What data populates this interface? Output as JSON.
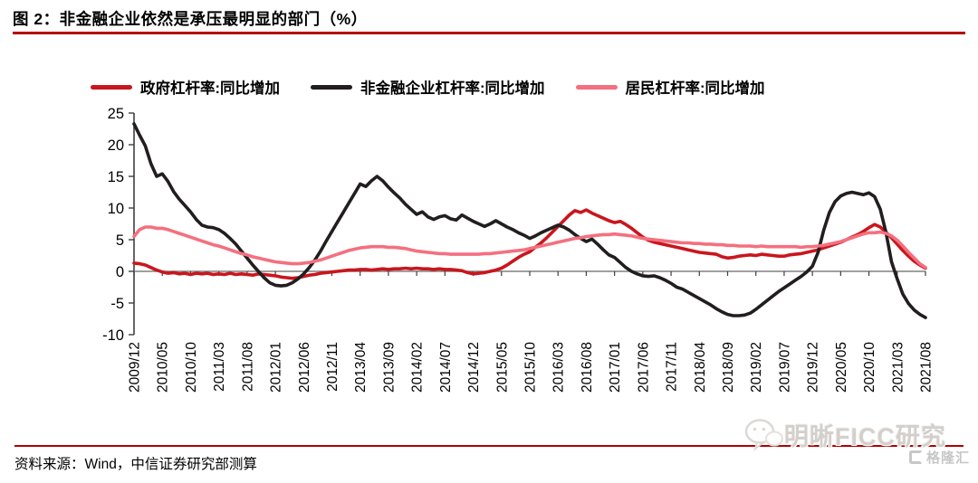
{
  "title": "图 2：非金融企业依然是承压最明显的部门（%）",
  "source": "资料来源：Wind，中信证券研究部测算",
  "watermark": {
    "text": "明晰FICC研究",
    "logo_text": "格隆汇"
  },
  "colors": {
    "government": "#c9161d",
    "corporate": "#221e1f",
    "household": "#f4707f",
    "rule_red": "#b20000",
    "axis_gray": "#808080",
    "axis_dark": "#3f3f3f"
  },
  "chart_data": {
    "type": "line",
    "title": "图 2：非金融企业依然是承压最明显的部门（%）",
    "ylim": [
      -10,
      25
    ],
    "yticks": [
      25,
      20,
      15,
      10,
      5,
      0,
      -5,
      -10
    ],
    "grid": false,
    "legend_position": "top",
    "x_monthly_start": "2009/12",
    "x_monthly_end": "2021/08",
    "x_tick_every_months": 5,
    "x_tick_labels": [
      "2009/12",
      "2010/05",
      "2010/10",
      "2011/03",
      "2011/08",
      "2012/01",
      "2012/06",
      "2012/11",
      "2013/04",
      "2013/09",
      "2014/02",
      "2014/07",
      "2014/12",
      "2015/05",
      "2015/10",
      "2016/03",
      "2016/08",
      "2017/01",
      "2017/06",
      "2017/11",
      "2018/04",
      "2018/09",
      "2019/02",
      "2019/07",
      "2019/12",
      "2020/05",
      "2020/10",
      "2021/03",
      "2021/08"
    ],
    "series": [
      {
        "name": "政府杠杆率:同比增加",
        "color": "#c9161d",
        "values": [
          1.3,
          1.2,
          1.0,
          0.6,
          0.2,
          -0.1,
          -0.3,
          -0.2,
          -0.4,
          -0.3,
          -0.5,
          -0.3,
          -0.4,
          -0.3,
          -0.5,
          -0.4,
          -0.5,
          -0.3,
          -0.5,
          -0.4,
          -0.5,
          -0.6,
          -0.4,
          -0.5,
          -0.6,
          -0.7,
          -0.9,
          -1.0,
          -1.1,
          -1.0,
          -0.8,
          -0.6,
          -0.5,
          -0.3,
          -0.2,
          -0.1,
          0.0,
          0.1,
          0.2,
          0.2,
          0.3,
          0.3,
          0.2,
          0.3,
          0.4,
          0.3,
          0.4,
          0.4,
          0.5,
          0.4,
          0.5,
          0.4,
          0.4,
          0.3,
          0.4,
          0.3,
          0.3,
          0.2,
          0.1,
          -0.2,
          -0.4,
          -0.3,
          -0.2,
          0.0,
          0.2,
          0.5,
          1.0,
          1.6,
          2.2,
          2.7,
          3.1,
          3.8,
          4.5,
          5.3,
          6.2,
          7.1,
          8.0,
          8.9,
          9.6,
          9.3,
          9.7,
          9.2,
          8.8,
          8.4,
          8.0,
          7.7,
          7.9,
          7.4,
          6.8,
          6.1,
          5.4,
          4.9,
          4.6,
          4.4,
          4.2,
          4.0,
          3.8,
          3.6,
          3.4,
          3.2,
          3.0,
          2.9,
          2.8,
          2.7,
          2.3,
          2.1,
          2.2,
          2.4,
          2.5,
          2.6,
          2.5,
          2.7,
          2.6,
          2.5,
          2.4,
          2.4,
          2.6,
          2.7,
          2.8,
          3.0,
          3.2,
          3.4,
          3.7,
          4.0,
          4.3,
          4.6,
          5.0,
          5.4,
          5.8,
          6.3,
          6.9,
          7.4,
          7.0,
          6.2,
          5.3,
          4.3,
          3.3,
          2.4,
          1.6,
          1.0,
          0.5
        ]
      },
      {
        "name": "非金融企业杠杆率:同比增加",
        "color": "#221e1f",
        "values": [
          23.3,
          21.5,
          19.8,
          17.0,
          15.0,
          15.4,
          14.2,
          12.6,
          11.4,
          10.4,
          9.4,
          8.2,
          7.3,
          7.0,
          6.9,
          6.6,
          6.0,
          5.2,
          4.3,
          3.2,
          2.1,
          1.0,
          0.0,
          -1.0,
          -1.8,
          -2.2,
          -2.3,
          -2.2,
          -1.8,
          -1.2,
          -0.4,
          0.6,
          1.8,
          3.2,
          4.8,
          6.3,
          7.8,
          9.3,
          10.8,
          12.3,
          13.8,
          13.4,
          14.3,
          15.0,
          14.3,
          13.3,
          12.4,
          11.6,
          10.6,
          9.8,
          9.0,
          9.4,
          8.6,
          8.2,
          8.6,
          8.8,
          8.3,
          8.1,
          8.9,
          8.4,
          7.9,
          7.5,
          7.1,
          7.5,
          8.0,
          7.5,
          7.0,
          6.6,
          6.1,
          5.7,
          5.2,
          5.6,
          6.1,
          6.5,
          6.9,
          7.3,
          7.0,
          6.5,
          5.8,
          5.2,
          4.7,
          5.1,
          4.3,
          3.4,
          2.6,
          2.2,
          1.4,
          0.6,
          0.0,
          -0.4,
          -0.7,
          -0.8,
          -0.7,
          -1.0,
          -1.4,
          -1.9,
          -2.5,
          -2.8,
          -3.3,
          -3.8,
          -4.3,
          -4.8,
          -5.3,
          -5.9,
          -6.4,
          -6.8,
          -7.0,
          -7.0,
          -6.9,
          -6.6,
          -6.0,
          -5.3,
          -4.6,
          -3.9,
          -3.2,
          -2.6,
          -2.0,
          -1.4,
          -0.8,
          -0.1,
          0.8,
          3.0,
          6.5,
          9.3,
          11.0,
          11.9,
          12.3,
          12.5,
          12.3,
          12.1,
          12.4,
          11.8,
          9.8,
          6.2,
          1.5,
          -1.2,
          -3.6,
          -5.1,
          -6.1,
          -6.8,
          -7.3
        ]
      },
      {
        "name": "居民杠杆率:同比增加",
        "color": "#f4707f",
        "values": [
          5.5,
          6.6,
          7.0,
          7.0,
          6.8,
          6.8,
          6.6,
          6.3,
          6.0,
          5.7,
          5.4,
          5.1,
          4.8,
          4.5,
          4.2,
          4.0,
          3.7,
          3.4,
          3.1,
          2.8,
          2.6,
          2.3,
          2.1,
          1.9,
          1.7,
          1.5,
          1.4,
          1.3,
          1.2,
          1.2,
          1.3,
          1.4,
          1.6,
          1.8,
          2.1,
          2.4,
          2.7,
          3.0,
          3.3,
          3.5,
          3.7,
          3.8,
          3.9,
          3.9,
          3.9,
          3.8,
          3.8,
          3.7,
          3.6,
          3.4,
          3.2,
          3.1,
          3.0,
          2.9,
          2.8,
          2.8,
          2.7,
          2.7,
          2.7,
          2.7,
          2.7,
          2.7,
          2.8,
          2.8,
          2.9,
          3.0,
          3.1,
          3.2,
          3.3,
          3.4,
          3.6,
          3.8,
          4.0,
          4.2,
          4.4,
          4.6,
          4.8,
          5.0,
          5.2,
          5.3,
          5.5,
          5.6,
          5.7,
          5.8,
          5.8,
          5.9,
          5.8,
          5.7,
          5.6,
          5.4,
          5.2,
          5.1,
          5.0,
          4.9,
          4.8,
          4.7,
          4.6,
          4.5,
          4.5,
          4.4,
          4.4,
          4.3,
          4.3,
          4.2,
          4.2,
          4.1,
          4.1,
          4.0,
          4.0,
          4.0,
          3.9,
          4.0,
          3.9,
          3.9,
          3.9,
          3.9,
          3.9,
          3.9,
          3.8,
          3.9,
          3.9,
          4.0,
          4.1,
          4.3,
          4.5,
          4.7,
          5.0,
          5.3,
          5.6,
          5.9,
          6.1,
          6.1,
          6.2,
          6.0,
          5.6,
          4.9,
          4.0,
          3.0,
          2.1,
          1.2,
          0.6
        ]
      }
    ]
  }
}
